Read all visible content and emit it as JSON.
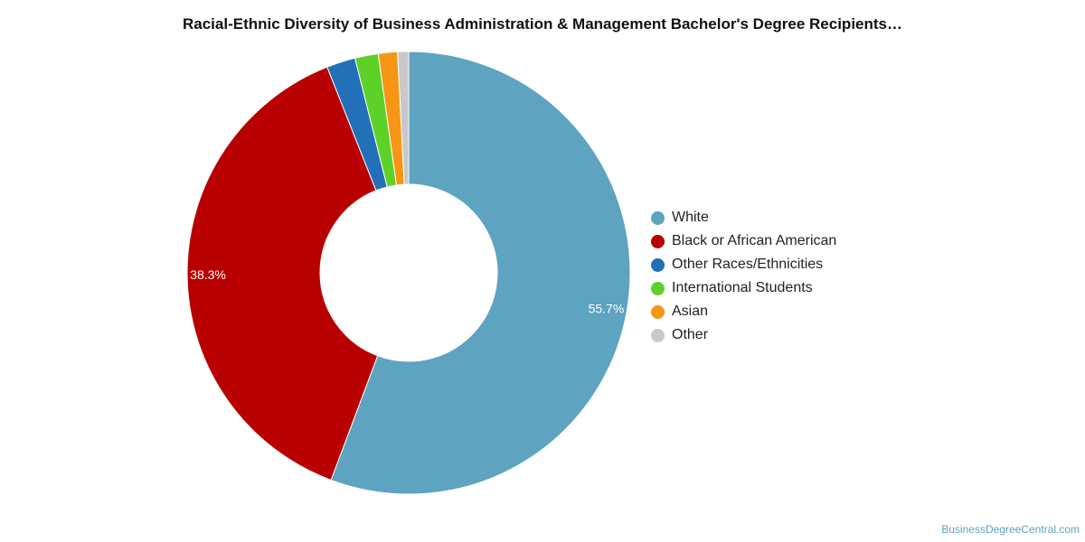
{
  "chart_data": {
    "type": "pie",
    "title": "Racial-Ethnic Diversity of Business Administration & Management Bachelor's Degree Recipients…",
    "donut": true,
    "categories": [
      "White",
      "Black or African American",
      "Other Races/Ethnicities",
      "International Students",
      "Asian",
      "Other"
    ],
    "values": [
      55.7,
      38.3,
      2.1,
      1.7,
      1.4,
      0.8
    ],
    "data_labels": [
      "55.7%",
      "38.3%",
      "",
      "",
      "",
      ""
    ],
    "colors": [
      "#5ea3c0",
      "#b80000",
      "#2170b8",
      "#5ed129",
      "#f79514",
      "#c8c8c8"
    ],
    "legend_position": "right"
  },
  "source": "BusinessDegreeCentral.com"
}
